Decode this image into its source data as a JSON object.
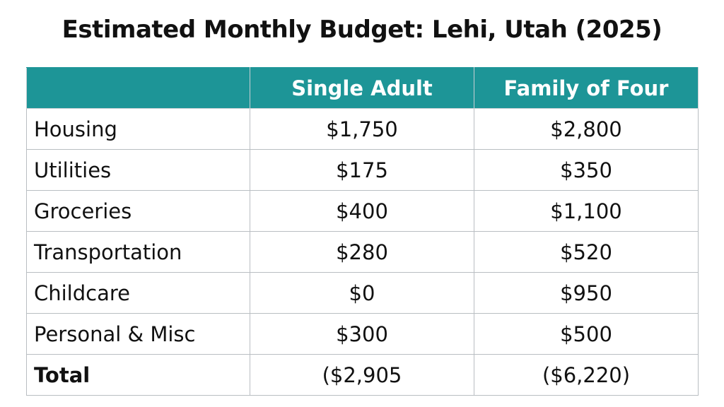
{
  "title": "Estimated Monthly Budget: Lehi, Utah (2025)",
  "chart_data": {
    "type": "table",
    "title": "Estimated Monthly Budget: Lehi, Utah (2025)",
    "columns": [
      "",
      "Single Adult",
      "Family of Four"
    ],
    "rows": [
      {
        "label": "Housing",
        "single": "$1,750",
        "family": "$2,800"
      },
      {
        "label": "Utilities",
        "single": "$175",
        "family": "$350"
      },
      {
        "label": "Groceries",
        "single": "$400",
        "family": "$1,100"
      },
      {
        "label": "Transportation",
        "single": "$280",
        "family": "$520"
      },
      {
        "label": "Childcare",
        "single": "$0",
        "family": "$950"
      },
      {
        "label": "Personal & Misc",
        "single": "$300",
        "family": "$500"
      },
      {
        "label": "Total",
        "single": "($2,905",
        "family": "($6,220)"
      }
    ]
  },
  "colors": {
    "header_background": "#1d9597",
    "header_text": "#ffffff",
    "grid_lines": "#b9bec2"
  }
}
